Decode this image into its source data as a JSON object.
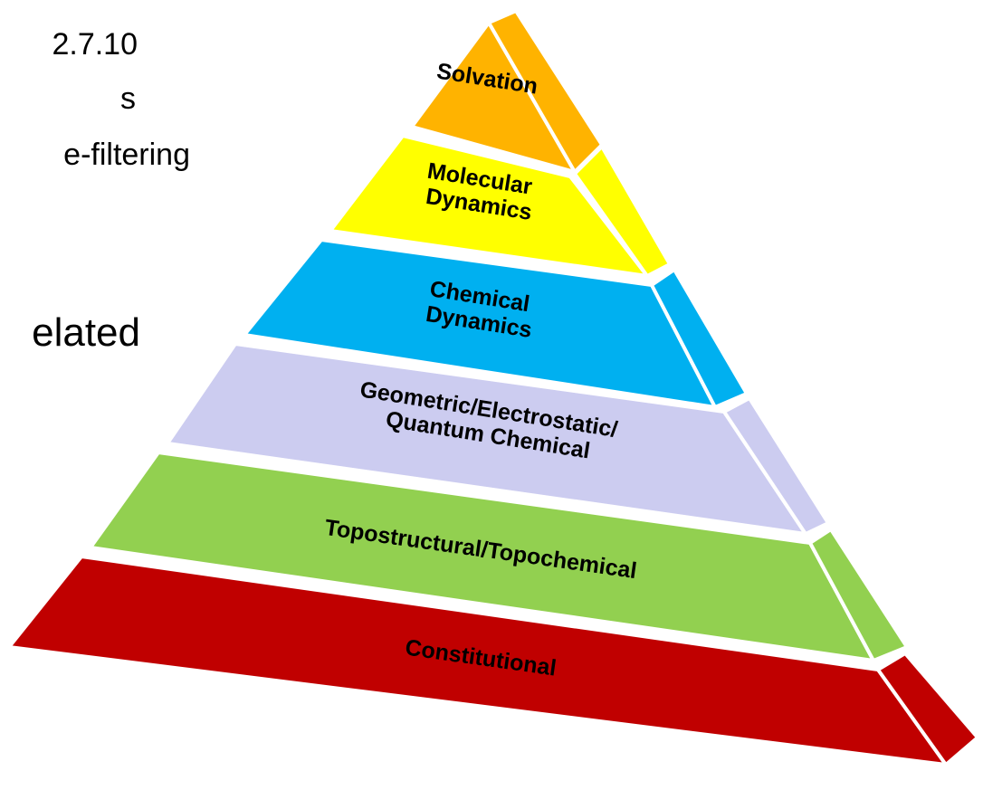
{
  "side_text": [
    "2.7.10",
    "s",
    "e-filtering",
    "elated"
  ],
  "pyramid": {
    "layers": [
      {
        "label": "Solvation"
      },
      {
        "label": "Molecular Dynamics"
      },
      {
        "label": "Chemical Dynamics"
      },
      {
        "label": "Geometric/Electrostatic/ Quantum Chemical"
      },
      {
        "label": "Topostructural/Topochemical"
      },
      {
        "label": "Constitutional"
      }
    ]
  }
}
